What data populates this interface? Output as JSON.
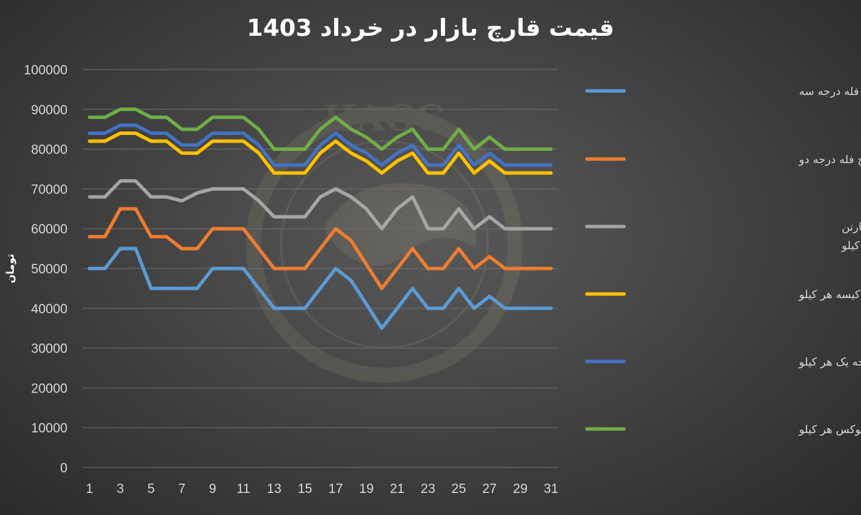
{
  "chart_data": {
    "type": "line",
    "title": "قیمت قارچ بازار در خرداد 1403",
    "ylabel": "تومان",
    "xlabel": "",
    "ylim": [
      0,
      100000
    ],
    "yticks": [
      0,
      10000,
      20000,
      30000,
      40000,
      50000,
      60000,
      70000,
      80000,
      90000,
      100000
    ],
    "xlim": [
      1,
      31
    ],
    "xticks": [
      1,
      3,
      5,
      7,
      9,
      11,
      13,
      15,
      17,
      19,
      21,
      23,
      25,
      27,
      29,
      31
    ],
    "x": [
      1,
      2,
      3,
      4,
      5,
      6,
      7,
      8,
      9,
      10,
      11,
      12,
      13,
      14,
      15,
      16,
      17,
      18,
      19,
      20,
      21,
      22,
      23,
      24,
      25,
      26,
      27,
      28,
      29,
      30,
      31
    ],
    "grid": true,
    "legend_position": "right",
    "watermark": "HAGG",
    "series": [
      {
        "name": "قارچ فله درجه سه",
        "color": "#5b9bd5",
        "values": [
          50000,
          50000,
          55000,
          55000,
          45000,
          45000,
          45000,
          45000,
          50000,
          50000,
          50000,
          45000,
          40000,
          40000,
          40000,
          45000,
          50000,
          47000,
          41000,
          35000,
          40000,
          45000,
          40000,
          40000,
          45000,
          40000,
          43000,
          40000,
          40000,
          40000,
          40000
        ]
      },
      {
        "name": "قارچ فله درجه دو",
        "color": "#ed7d31",
        "values": [
          58000,
          58000,
          65000,
          65000,
          58000,
          58000,
          55000,
          55000,
          60000,
          60000,
          60000,
          55000,
          50000,
          50000,
          50000,
          55000,
          60000,
          57000,
          51000,
          45000,
          50000,
          55000,
          50000,
          50000,
          55000,
          50000,
          53000,
          50000,
          50000,
          50000,
          50000
        ]
      },
      {
        "name": "قارچ فله در سبد و کیسه و کارتن (کیفیت متوسط )هر کیلو",
        "color": "#a5a5a5",
        "values": [
          68000,
          68000,
          72000,
          72000,
          68000,
          68000,
          67000,
          69000,
          70000,
          70000,
          70000,
          67000,
          63000,
          63000,
          63000,
          68000,
          70000,
          68000,
          65000,
          60000,
          65000,
          68000,
          60000,
          60000,
          65000,
          60000,
          63000,
          60000,
          60000,
          60000,
          60000
        ]
      },
      {
        "name": "قارچ فله در کیسه هر کیلو",
        "color": "#ffc000",
        "values": [
          82000,
          82000,
          84000,
          84000,
          82000,
          82000,
          79000,
          79000,
          82000,
          82000,
          82000,
          79000,
          74000,
          74000,
          74000,
          79000,
          82000,
          79000,
          77000,
          74000,
          77000,
          79000,
          74000,
          74000,
          79000,
          74000,
          77000,
          74000,
          74000,
          74000,
          74000
        ]
      },
      {
        "name": "قارچ فله سبد درجه یک هر کیلو",
        "color": "#4472c4",
        "values": [
          84000,
          84000,
          86000,
          86000,
          84000,
          84000,
          81000,
          81000,
          84000,
          84000,
          84000,
          81000,
          76000,
          76000,
          76000,
          81000,
          84000,
          81000,
          79000,
          76000,
          79000,
          81000,
          76000,
          76000,
          81000,
          76000,
          79000,
          76000,
          76000,
          76000,
          76000
        ]
      },
      {
        "name": "قارچ فله در سبد لوکس هر کیلو",
        "color": "#70ad47",
        "values": [
          88000,
          88000,
          90000,
          90000,
          88000,
          88000,
          85000,
          85000,
          88000,
          88000,
          88000,
          85000,
          80000,
          80000,
          80000,
          85000,
          88000,
          85000,
          83000,
          80000,
          83000,
          85000,
          80000,
          80000,
          85000,
          80000,
          83000,
          80000,
          80000,
          80000,
          80000
        ]
      }
    ]
  }
}
